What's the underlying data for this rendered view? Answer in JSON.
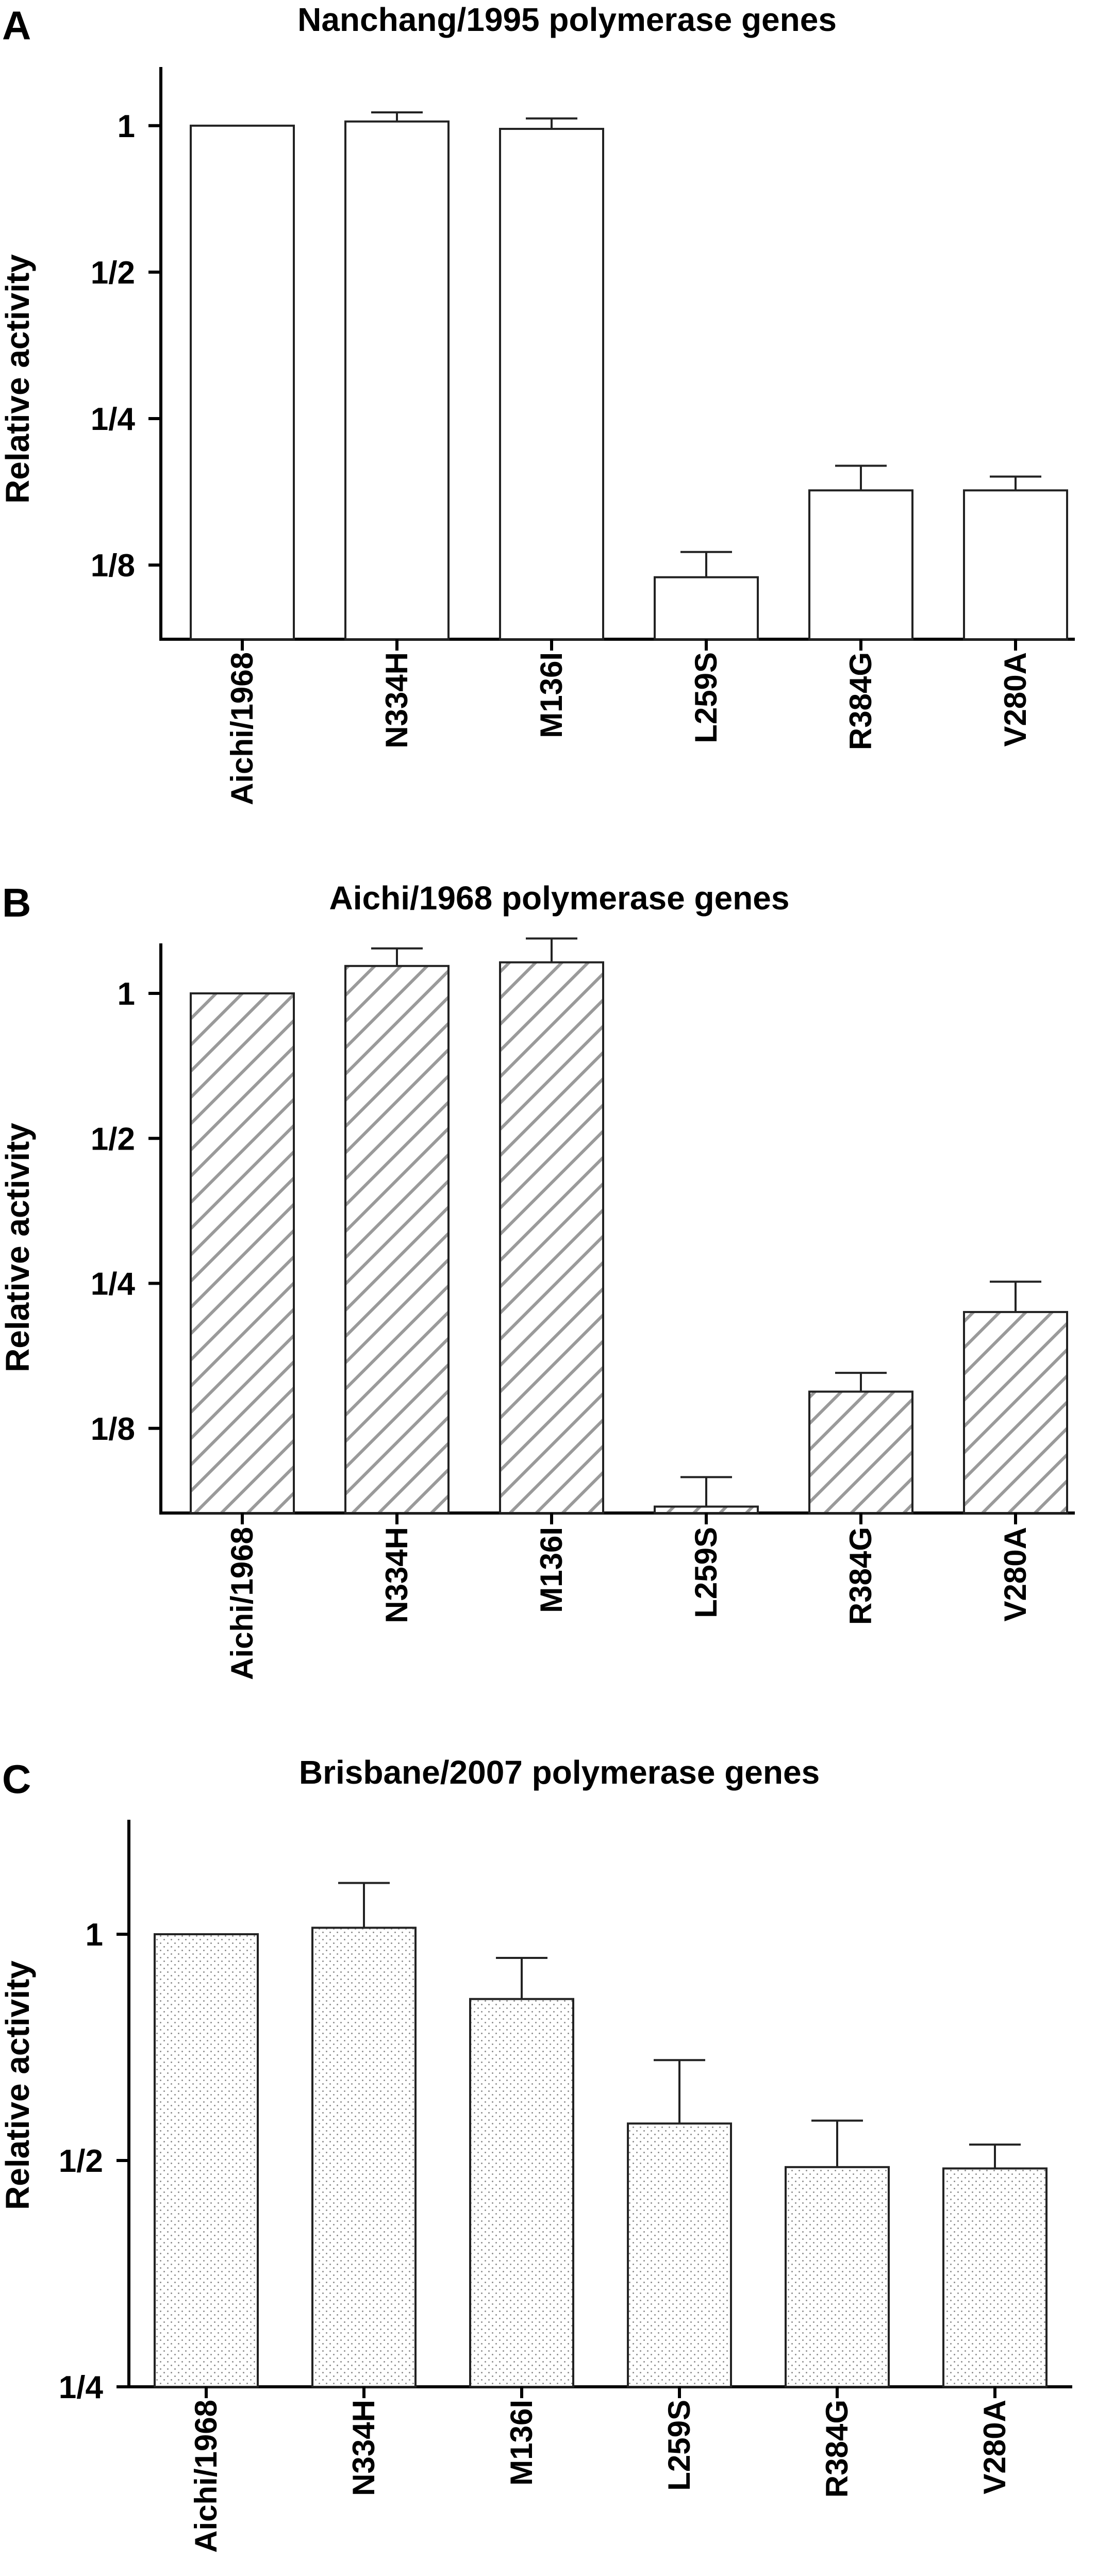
{
  "chart_data": [
    {
      "type": "bar",
      "panel_label": "A",
      "title": "Nanchang/1995 polymerase genes",
      "ylabel": "Relative activity",
      "xlabel": "",
      "scale": "log2",
      "ylim": [
        0.088,
        1.32
      ],
      "yticks": [
        1,
        0.5,
        0.25,
        0.125
      ],
      "ytick_labels": [
        "1",
        "1/2",
        "1/4",
        "1/8"
      ],
      "categories": [
        "Aichi/1968",
        "N334H",
        "M136I",
        "L259S",
        "R384G",
        "V280A"
      ],
      "values": [
        1.0,
        1.02,
        0.985,
        0.118,
        0.178,
        0.178
      ],
      "errors": [
        0.0,
        0.045,
        0.05,
        0.015,
        0.022,
        0.012
      ],
      "fill": "plain",
      "grid": false,
      "legend": "none"
    },
    {
      "type": "bar",
      "panel_label": "B",
      "title": "Aichi/1968 polymerase genes",
      "ylabel": "Relative activity",
      "xlabel": "",
      "scale": "log2",
      "ylim": [
        0.0834,
        1.27
      ],
      "yticks": [
        1,
        0.5,
        0.25,
        0.125
      ],
      "ytick_labels": [
        "1",
        "1/2",
        "1/4",
        "1/8"
      ],
      "categories": [
        "Aichi/1968",
        "N334H",
        "M136I",
        "L259S",
        "R384G",
        "V280A"
      ],
      "values": [
        1.0,
        1.14,
        1.16,
        0.086,
        0.149,
        0.218
      ],
      "errors": [
        0.0,
        0.1,
        0.14,
        0.013,
        0.014,
        0.034
      ],
      "fill": "hatched",
      "grid": false,
      "legend": "none"
    },
    {
      "type": "bar",
      "panel_label": "C",
      "title": "Brisbane/2007 polymerase genes",
      "ylabel": "Relative activity",
      "xlabel": "",
      "scale": "log2",
      "ylim": [
        0.25,
        1.42
      ],
      "yticks": [
        1,
        0.5,
        0.25
      ],
      "ytick_labels": [
        "1",
        "1/2",
        "1/4"
      ],
      "categories": [
        "Aichi/1968",
        "N334H",
        "M136I",
        "L259S",
        "R384G",
        "V280A"
      ],
      "values": [
        1.0,
        1.02,
        0.82,
        0.56,
        0.49,
        0.488
      ],
      "errors": [
        0.0,
        0.15,
        0.11,
        0.12,
        0.075,
        0.037
      ],
      "fill": "dotted",
      "grid": false,
      "legend": "none"
    }
  ],
  "colors": {
    "axis": "#000000",
    "bar_stroke": "#222222",
    "bar_plain": "#ffffff",
    "hatch_line": "#9a9a9a",
    "dot": "#8c8c8c"
  }
}
